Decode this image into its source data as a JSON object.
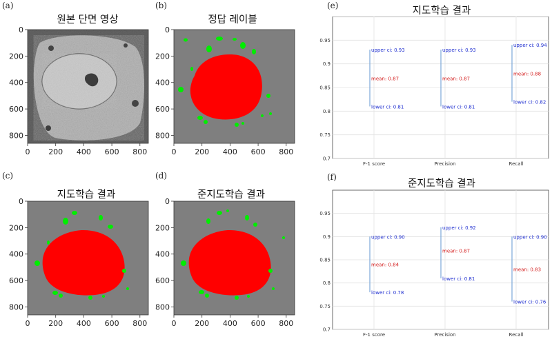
{
  "panels": [
    {
      "label": "(a)",
      "title": "원본 단면 영상",
      "type": "micrograph"
    },
    {
      "label": "(b)",
      "title": "정답 레이블",
      "type": "segmentation"
    },
    {
      "label": "(c)",
      "title": "지도학습 결과",
      "type": "segmentation"
    },
    {
      "label": "(d)",
      "title": "준지도학습 결과",
      "type": "segmentation"
    }
  ],
  "image_axes": {
    "x_ticks": [
      "0",
      "200",
      "400",
      "600",
      "800"
    ],
    "y_ticks": [
      "0",
      "200",
      "400",
      "600",
      "800"
    ]
  },
  "colors": {
    "background_gray": "#7f7f7f",
    "nucleus_red": "#ff0000",
    "granule_green": "#00ee00",
    "ci_line": "#7aa7d8",
    "ci_text": "#1f2fd0",
    "mean_text": "#d42020"
  },
  "chart_data": [
    {
      "label": "(e)",
      "type": "interval",
      "title": "지도학습 결과",
      "categories": [
        "F-1 score",
        "Precision",
        "Recall"
      ],
      "ylim": [
        0.7,
        1.0
      ],
      "y_ticks": [
        "0.7",
        "0.75",
        "0.8",
        "0.85",
        "0.9",
        "0.95"
      ],
      "grid": true,
      "series": [
        {
          "upper": 0.93,
          "mean": 0.87,
          "lower": 0.81,
          "upper_label": "upper ci: 0.93",
          "mean_label": "mean: 0.87",
          "lower_label": "lower ci: 0.81"
        },
        {
          "upper": 0.93,
          "mean": 0.87,
          "lower": 0.81,
          "upper_label": "upper ci: 0.93",
          "mean_label": "mean: 0.87",
          "lower_label": "lower ci: 0.81"
        },
        {
          "upper": 0.94,
          "mean": 0.88,
          "lower": 0.82,
          "upper_label": "upper ci: 0.94",
          "mean_label": "mean: 0.88",
          "lower_label": "lower ci: 0.82"
        }
      ]
    },
    {
      "label": "(f)",
      "type": "interval",
      "title": "준지도학습 결과",
      "categories": [
        "F-1 score",
        "Precision",
        "Recall"
      ],
      "ylim": [
        0.7,
        1.0
      ],
      "y_ticks": [
        "0.7",
        "0.75",
        "0.8",
        "0.85",
        "0.9",
        "0.95"
      ],
      "grid": true,
      "series": [
        {
          "upper": 0.9,
          "mean": 0.84,
          "lower": 0.78,
          "upper_label": "upper ci: 0.90",
          "mean_label": "mean: 0.84",
          "lower_label": "lower ci: 0.78"
        },
        {
          "upper": 0.92,
          "mean": 0.87,
          "lower": 0.81,
          "upper_label": "upper ci: 0.92",
          "mean_label": "mean: 0.87",
          "lower_label": "lower ci: 0.81"
        },
        {
          "upper": 0.9,
          "mean": 0.83,
          "lower": 0.76,
          "upper_label": "upper ci: 0.90",
          "mean_label": "mean: 0.83",
          "lower_label": "lower ci: 0.76"
        }
      ]
    }
  ]
}
